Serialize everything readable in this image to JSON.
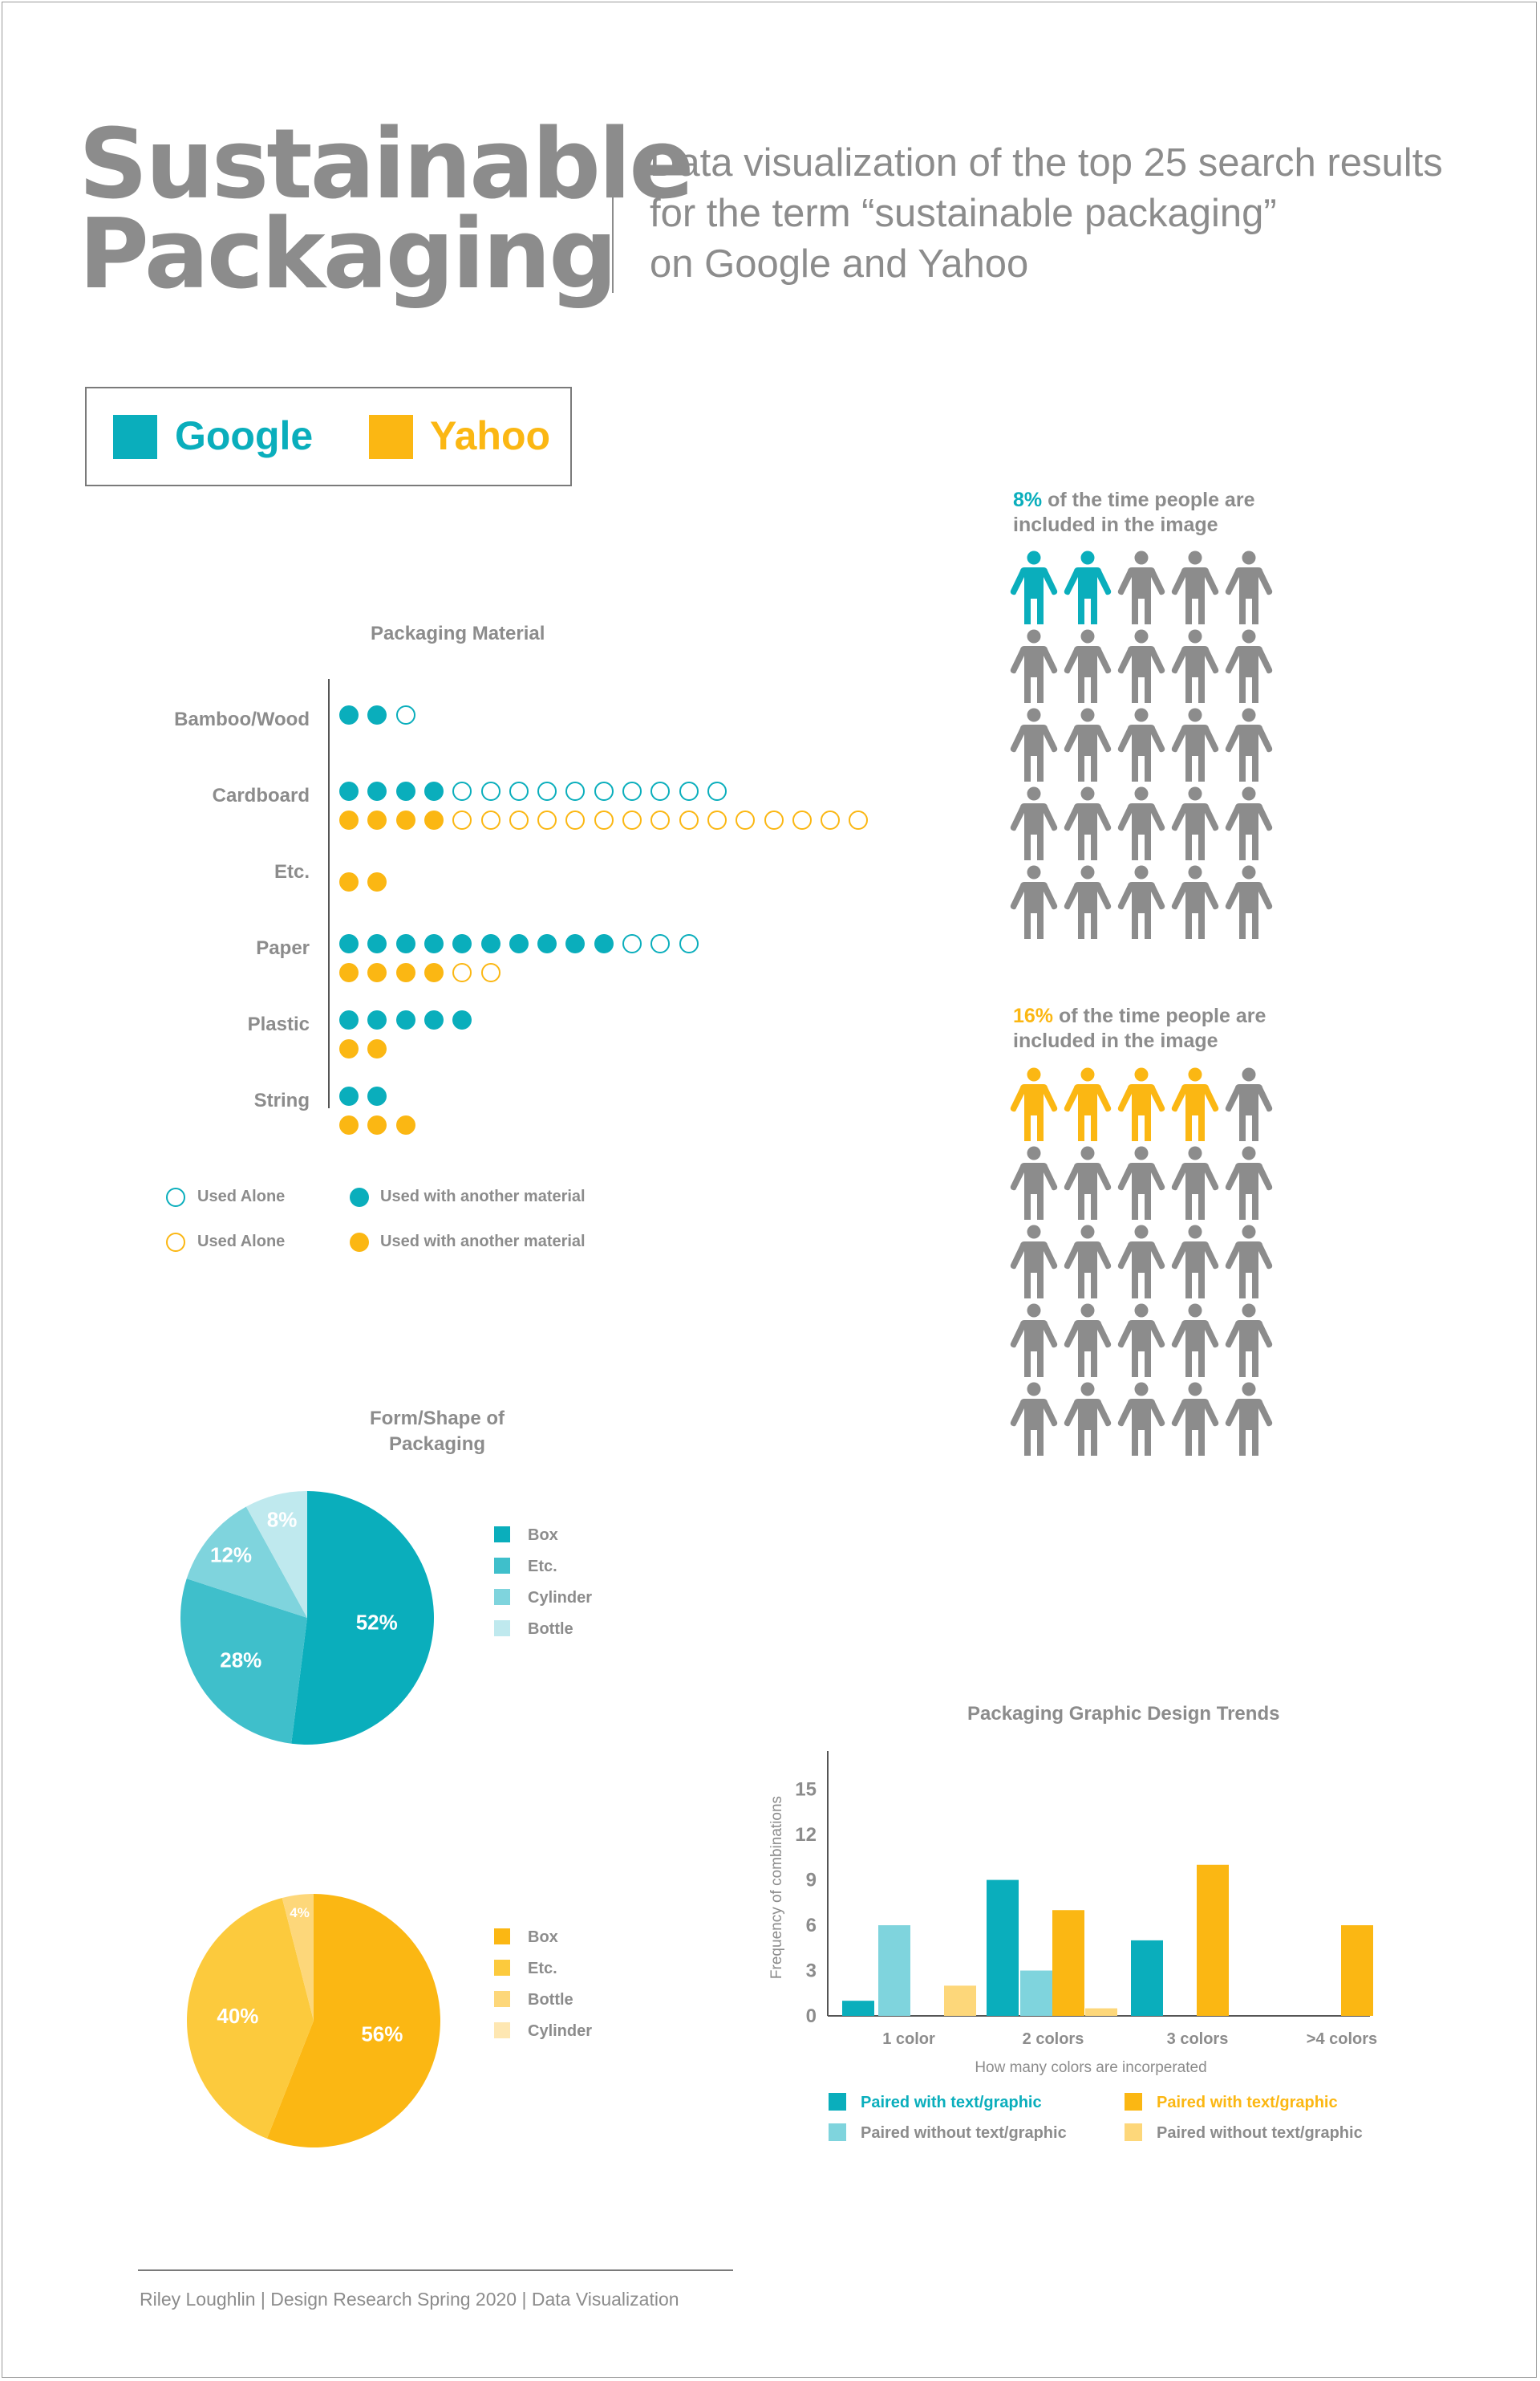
{
  "header": {
    "title_line1": "Sustainable",
    "title_line2": "Packaging",
    "subtitle_line1": "Data visualization of the top 25 search results",
    "subtitle_line2": "for the term “sustainable packaging”",
    "subtitle_line3": "on Google and Yahoo"
  },
  "legend": {
    "google_label": "Google",
    "yahoo_label": "Yahoo"
  },
  "colors": {
    "google": "#0aaebc",
    "yahoo": "#fbb713",
    "gray": "#8c8c8c",
    "google_light": "#7fd1da",
    "yahoo_light": "#fdd77a"
  },
  "people": {
    "google": {
      "pct": "8%",
      "caption_rest_line1": " of the time people are",
      "caption_line2": "included in the image",
      "highlighted": 2,
      "total": 25
    },
    "yahoo": {
      "pct": "16%",
      "caption_rest_line1": " of the time people are",
      "caption_line2": "included in the image",
      "highlighted": 4,
      "total": 25
    }
  },
  "chart_data": [
    {
      "type": "dot",
      "title": "Packaging Material",
      "categories": [
        "Bamboo/Wood",
        "Cardboard",
        "Etc.",
        "Paper",
        "Plastic",
        "String"
      ],
      "series": [
        {
          "name": "Google",
          "with_another": [
            2,
            4,
            0,
            10,
            5,
            2
          ],
          "alone": [
            1,
            10,
            0,
            3,
            0,
            0
          ]
        },
        {
          "name": "Yahoo",
          "with_another": [
            0,
            4,
            2,
            4,
            2,
            3
          ],
          "alone": [
            0,
            15,
            0,
            2,
            0,
            0
          ]
        }
      ],
      "legend": {
        "google_alone": "Used Alone",
        "google_with": "Used with another material",
        "yahoo_alone": "Used Alone",
        "yahoo_with": "Used with another material"
      }
    },
    {
      "type": "pie",
      "title": "Form/Shape of Packaging",
      "group": "Google",
      "slices": [
        {
          "label": "Box",
          "value": 52,
          "color": "#0aaebc"
        },
        {
          "label": "Etc.",
          "value": 28,
          "color": "#3fbfcb"
        },
        {
          "label": "Cylinder",
          "value": 12,
          "color": "#7fd4dd"
        },
        {
          "label": "Bottle",
          "value": 8,
          "color": "#bfe9ee"
        }
      ],
      "legend_order": [
        "Box",
        "Etc.",
        "Cylinder",
        "Bottle"
      ]
    },
    {
      "type": "pie",
      "group": "Yahoo",
      "slices": [
        {
          "label": "Box",
          "value": 56,
          "color": "#fbb713"
        },
        {
          "label": "Etc.",
          "value": 40,
          "color": "#fcca3d"
        },
        {
          "label": "Bottle",
          "value": 4,
          "color": "#fdd77a"
        },
        {
          "label": "Cylinder",
          "value": 0,
          "color": "#fee7b2"
        }
      ],
      "legend_order": [
        "Box",
        "Etc.",
        "Bottle",
        "Cylinder"
      ]
    },
    {
      "type": "bar",
      "title": "Packaging Graphic Design Trends",
      "xlabel": "How many colors are incorperated",
      "ylabel": "Frequency of combinations",
      "categories": [
        "1 color",
        "2 colors",
        "3 colors",
        ">4 colors"
      ],
      "yticks": [
        0,
        3,
        6,
        9,
        12,
        15
      ],
      "ylim": [
        0,
        17
      ],
      "series": [
        {
          "name": "Paired with text/graphic",
          "group": "Google",
          "color": "#0aaebc",
          "values": [
            1,
            9,
            5,
            0
          ]
        },
        {
          "name": "Paired without text/graphic",
          "group": "Google",
          "color": "#7fd4dd",
          "values": [
            6,
            3,
            0,
            0
          ]
        },
        {
          "name": "Paired with text/graphic",
          "group": "Yahoo",
          "color": "#fbb713",
          "values": [
            0,
            7,
            10,
            6
          ]
        },
        {
          "name": "Paired without text/graphic",
          "group": "Yahoo",
          "color": "#fdd77a",
          "values": [
            2,
            0.5,
            0,
            0
          ]
        }
      ]
    }
  ],
  "footer": {
    "credit": "Riley Loughlin | Design Research Spring 2020 | Data Visualization"
  }
}
